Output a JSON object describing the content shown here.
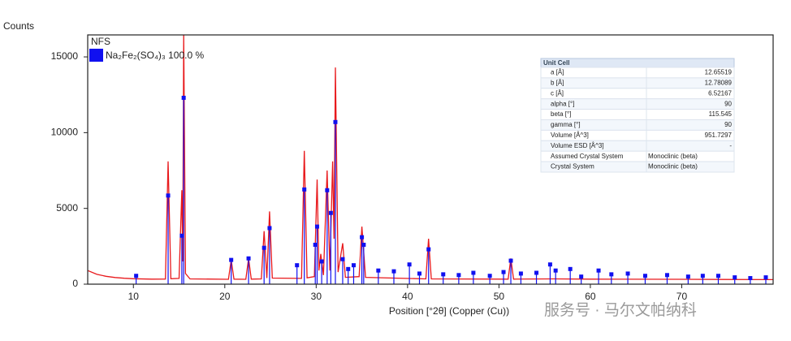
{
  "chart_data": {
    "type": "line",
    "y_label": "Counts",
    "x_label": "Position [°2θ] (Copper (Cu))",
    "legend_title": "NFS",
    "legend": "upper left",
    "xlim": [
      5,
      80
    ],
    "ylim": [
      0,
      16450
    ],
    "xticks": [
      10,
      20,
      30,
      40,
      50,
      60,
      70
    ],
    "yticks": [
      0,
      5000,
      10000,
      15000
    ],
    "series": [
      {
        "color": "#e8191c",
        "x": [
          5,
          6,
          7,
          8,
          9,
          10,
          12,
          13.5,
          13.8,
          14.1,
          15.0,
          15.3,
          15.4,
          15.5,
          15.7,
          16.2,
          20.4,
          20.7,
          21.0,
          22.3,
          22.6,
          22.9,
          24.0,
          24.3,
          24.6,
          24.9,
          25.2,
          28.4,
          28.7,
          29.0,
          29.8,
          30.1,
          30.3,
          30.5,
          30.8,
          31.2,
          31.5,
          31.8,
          31.95,
          32.1,
          32.4,
          32.9,
          33.2,
          34.7,
          35.0,
          35.4,
          42.0,
          42.3,
          42.6,
          51.0,
          51.3,
          51.6,
          56,
          60,
          70,
          80
        ],
        "values": [
          900,
          650,
          520,
          440,
          390,
          360,
          330,
          340,
          8100,
          360,
          380,
          6200,
          1500,
          16450,
          700,
          350,
          320,
          1600,
          330,
          320,
          1700,
          330,
          350,
          3500,
          400,
          4800,
          400,
          380,
          8800,
          420,
          500,
          6900,
          900,
          2000,
          600,
          7500,
          900,
          8100,
          3000,
          14300,
          800,
          2700,
          450,
          500,
          3800,
          450,
          350,
          3000,
          350,
          330,
          1700,
          330,
          350,
          330,
          320,
          300
        ]
      },
      {
        "name": "Na₂Fe₂(SO₄)₃ 100.0 %",
        "color": "#1010f0",
        "style": "stem",
        "x": [
          10.3,
          13.8,
          15.3,
          15.5,
          20.7,
          22.6,
          24.3,
          24.9,
          27.9,
          28.7,
          29.9,
          30.1,
          30.6,
          31.2,
          31.6,
          32.1,
          32.9,
          33.5,
          34.1,
          35.0,
          35.2,
          36.8,
          38.5,
          40.2,
          41.3,
          42.3,
          43.9,
          45.6,
          47.2,
          49.0,
          50.5,
          51.3,
          52.4,
          54.1,
          55.6,
          56.2,
          57.8,
          59.0,
          60.9,
          62.3,
          64.1,
          66.0,
          68.4,
          70.7,
          72.3,
          74.0,
          75.8,
          77.5,
          79.2
        ],
        "values": [
          550,
          5850,
          3200,
          12300,
          1600,
          1700,
          2400,
          3700,
          1250,
          6250,
          2600,
          3800,
          1500,
          6200,
          4700,
          10700,
          1650,
          1000,
          1250,
          3100,
          2600,
          900,
          850,
          1300,
          700,
          2300,
          650,
          600,
          750,
          550,
          800,
          1550,
          700,
          750,
          1300,
          900,
          1000,
          500,
          900,
          650,
          700,
          550,
          600,
          500,
          550,
          550,
          450,
          400,
          450
        ]
      }
    ]
  },
  "unit_cell": {
    "title": "Unit Cell",
    "rows": [
      [
        "a [Å]",
        "12.65519"
      ],
      [
        "b [Å]",
        "12.78089"
      ],
      [
        "c [Å]",
        "6.52167"
      ],
      [
        "alpha [°]",
        "90"
      ],
      [
        "beta [°]",
        "115.545"
      ],
      [
        "gamma [°]",
        "90"
      ],
      [
        "Volume [Å^3]",
        "951.7297"
      ],
      [
        "Volume ESD [Å^3]",
        "-"
      ],
      [
        "Assumed Crystal System",
        "Monoclinic (beta)"
      ],
      [
        "Crystal System",
        "Monoclinic (beta)"
      ]
    ]
  },
  "watermark": "服务号 · 马尔文帕纳科"
}
